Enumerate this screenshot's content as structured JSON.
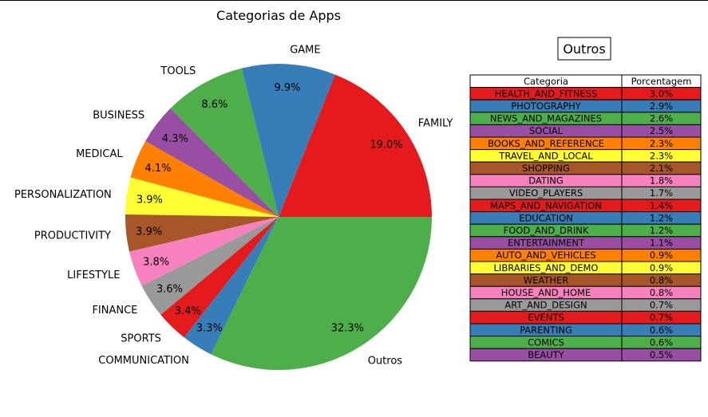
{
  "chart_data": [
    {
      "type": "pie",
      "title": "Categorias de Apps",
      "start_angle_deg": 0,
      "direction": "counterclockwise",
      "slices": [
        {
          "label": "FAMILY",
          "value": 19.0,
          "pct_text": "19.0%",
          "color": "#e41a1c"
        },
        {
          "label": "GAME",
          "value": 9.9,
          "pct_text": "9.9%",
          "color": "#377eb8"
        },
        {
          "label": "TOOLS",
          "value": 8.6,
          "pct_text": "8.6%",
          "color": "#4daf4a"
        },
        {
          "label": "BUSINESS",
          "value": 4.3,
          "pct_text": "4.3%",
          "color": "#984ea3"
        },
        {
          "label": "MEDICAL",
          "value": 4.1,
          "pct_text": "4.1%",
          "color": "#ff7f00"
        },
        {
          "label": "PERSONALIZATION",
          "value": 3.9,
          "pct_text": "3.9%",
          "color": "#ffff33"
        },
        {
          "label": "PRODUCTIVITY",
          "value": 3.9,
          "pct_text": "3.9%",
          "color": "#a65628"
        },
        {
          "label": "LIFESTYLE",
          "value": 3.8,
          "pct_text": "3.8%",
          "color": "#f781bf"
        },
        {
          "label": "FINANCE",
          "value": 3.6,
          "pct_text": "3.6%",
          "color": "#999999"
        },
        {
          "label": "SPORTS",
          "value": 3.4,
          "pct_text": "3.4%",
          "color": "#e41a1c"
        },
        {
          "label": "COMMUNICATION",
          "value": 3.3,
          "pct_text": "3.3%",
          "color": "#377eb8"
        },
        {
          "label": "Outros",
          "value": 32.3,
          "pct_text": "32.3%",
          "color": "#4daf4a"
        }
      ]
    },
    {
      "type": "table",
      "title": "Outros",
      "columns": [
        "Categoria",
        "Porcentagem"
      ],
      "rows": [
        {
          "categoria": "HEALTH_AND_FITNESS",
          "porcentagem": "3.0%",
          "color": "#e41a1c"
        },
        {
          "categoria": "PHOTOGRAPHY",
          "porcentagem": "2.9%",
          "color": "#377eb8"
        },
        {
          "categoria": "NEWS_AND_MAGAZINES",
          "porcentagem": "2.6%",
          "color": "#4daf4a"
        },
        {
          "categoria": "SOCIAL",
          "porcentagem": "2.5%",
          "color": "#984ea3"
        },
        {
          "categoria": "BOOKS_AND_REFERENCE",
          "porcentagem": "2.3%",
          "color": "#ff7f00"
        },
        {
          "categoria": "TRAVEL_AND_LOCAL",
          "porcentagem": "2.3%",
          "color": "#ffff33"
        },
        {
          "categoria": "SHOPPING",
          "porcentagem": "2.1%",
          "color": "#a65628"
        },
        {
          "categoria": "DATING",
          "porcentagem": "1.8%",
          "color": "#f781bf"
        },
        {
          "categoria": "VIDEO_PLAYERS",
          "porcentagem": "1.7%",
          "color": "#999999"
        },
        {
          "categoria": "MAPS_AND_NAVIGATION",
          "porcentagem": "1.4%",
          "color": "#e41a1c"
        },
        {
          "categoria": "EDUCATION",
          "porcentagem": "1.2%",
          "color": "#377eb8"
        },
        {
          "categoria": "FOOD_AND_DRINK",
          "porcentagem": "1.2%",
          "color": "#4daf4a"
        },
        {
          "categoria": "ENTERTAINMENT",
          "porcentagem": "1.1%",
          "color": "#984ea3"
        },
        {
          "categoria": "AUTO_AND_VEHICLES",
          "porcentagem": "0.9%",
          "color": "#ff7f00"
        },
        {
          "categoria": "LIBRARIES_AND_DEMO",
          "porcentagem": "0.9%",
          "color": "#ffff33"
        },
        {
          "categoria": "WEATHER",
          "porcentagem": "0.8%",
          "color": "#a65628"
        },
        {
          "categoria": "HOUSE_AND_HOME",
          "porcentagem": "0.8%",
          "color": "#f781bf"
        },
        {
          "categoria": "ART_AND_DESIGN",
          "porcentagem": "0.7%",
          "color": "#999999"
        },
        {
          "categoria": "EVENTS",
          "porcentagem": "0.7%",
          "color": "#e41a1c"
        },
        {
          "categoria": "PARENTING",
          "porcentagem": "0.6%",
          "color": "#377eb8"
        },
        {
          "categoria": "COMICS",
          "porcentagem": "0.6%",
          "color": "#4daf4a"
        },
        {
          "categoria": "BEAUTY",
          "porcentagem": "0.5%",
          "color": "#984ea3"
        }
      ]
    }
  ]
}
